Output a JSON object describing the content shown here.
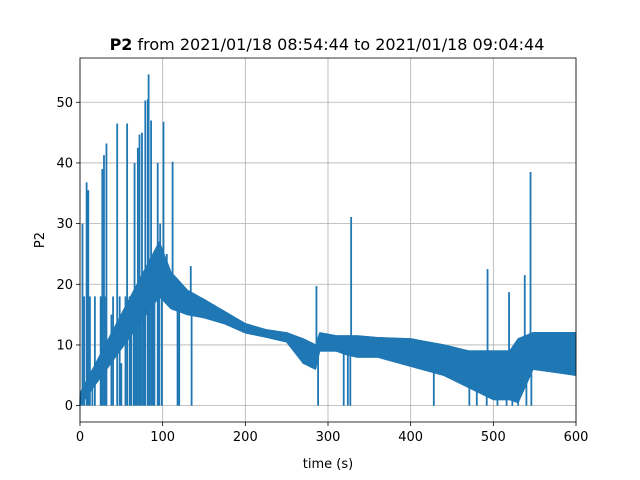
{
  "chart_data": {
    "type": "line",
    "title_bold": "P2",
    "title_rest": " from 2021/01/18 08:54:44 to 2021/01/18 09:04:44",
    "xlabel": "time (s)",
    "ylabel": "P2",
    "xlim": [
      0,
      600
    ],
    "ylim": [
      -2.7,
      57.3
    ],
    "xticks": [
      0,
      100,
      200,
      300,
      400,
      500,
      600
    ],
    "yticks": [
      0,
      10,
      20,
      30,
      40,
      50
    ],
    "grid": true,
    "color": "#1f77b4",
    "spikes": [
      {
        "x": 3,
        "y": 30
      },
      {
        "x": 8,
        "y": 36.8
      },
      {
        "x": 10,
        "y": 35.5
      },
      {
        "x": 15,
        "y": 3.5
      },
      {
        "x": 27,
        "y": 39
      },
      {
        "x": 29,
        "y": 41.3
      },
      {
        "x": 32,
        "y": 43.2
      },
      {
        "x": 38,
        "y": 15
      },
      {
        "x": 45,
        "y": 46.5
      },
      {
        "x": 50,
        "y": 7
      },
      {
        "x": 57,
        "y": 46.5
      },
      {
        "x": 62,
        "y": 16
      },
      {
        "x": 66,
        "y": 40
      },
      {
        "x": 70,
        "y": 42.5
      },
      {
        "x": 72,
        "y": 44.7
      },
      {
        "x": 75,
        "y": 45
      },
      {
        "x": 79,
        "y": 50.3
      },
      {
        "x": 82,
        "y": 50.5
      },
      {
        "x": 83,
        "y": 54.6
      },
      {
        "x": 86,
        "y": 47
      },
      {
        "x": 90,
        "y": 25
      },
      {
        "x": 94,
        "y": 40
      },
      {
        "x": 97,
        "y": 30
      },
      {
        "x": 101,
        "y": 46.8
      },
      {
        "x": 105,
        "y": 25
      },
      {
        "x": 112,
        "y": 40.2
      },
      {
        "x": 117,
        "y": 21
      },
      {
        "x": 126,
        "y": 18
      },
      {
        "x": 134,
        "y": 23
      },
      {
        "x": 286,
        "y": 19.7
      },
      {
        "x": 328,
        "y": 31.1
      },
      {
        "x": 493,
        "y": 22.5
      },
      {
        "x": 510,
        "y": 7
      },
      {
        "x": 519,
        "y": 18.7
      },
      {
        "x": 538,
        "y": 21.5
      },
      {
        "x": 545,
        "y": 38.5
      }
    ],
    "dips": [
      {
        "x": 5,
        "y": 0
      },
      {
        "x": 12,
        "y": 0
      },
      {
        "x": 18,
        "y": 0
      },
      {
        "x": 25,
        "y": 0
      },
      {
        "x": 30,
        "y": 0
      },
      {
        "x": 40,
        "y": 0
      },
      {
        "x": 48,
        "y": 0
      },
      {
        "x": 55,
        "y": 0
      },
      {
        "x": 60,
        "y": 0
      },
      {
        "x": 65,
        "y": 0
      },
      {
        "x": 68,
        "y": 0
      },
      {
        "x": 73,
        "y": 0
      },
      {
        "x": 77,
        "y": 0
      },
      {
        "x": 84,
        "y": 0
      },
      {
        "x": 88,
        "y": 0
      },
      {
        "x": 96,
        "y": 0
      },
      {
        "x": 99,
        "y": 0
      },
      {
        "x": 118,
        "y": 0
      },
      {
        "x": 120,
        "y": 0
      },
      {
        "x": 135,
        "y": 0
      },
      {
        "x": 288,
        "y": 0
      },
      {
        "x": 319,
        "y": 0
      },
      {
        "x": 324,
        "y": 0
      },
      {
        "x": 327,
        "y": 0
      },
      {
        "x": 428,
        "y": 0
      },
      {
        "x": 471,
        "y": 0
      },
      {
        "x": 480,
        "y": 0
      },
      {
        "x": 492,
        "y": 0
      },
      {
        "x": 505,
        "y": 0
      },
      {
        "x": 516,
        "y": 0
      },
      {
        "x": 523,
        "y": 0
      },
      {
        "x": 530,
        "y": 0
      },
      {
        "x": 540,
        "y": 0
      },
      {
        "x": 546,
        "y": 0
      }
    ],
    "band": [
      {
        "x": 0,
        "lo": 0,
        "hi": 2
      },
      {
        "x": 96,
        "lo": 18,
        "hi": 27
      },
      {
        "x": 110,
        "lo": 16,
        "hi": 22
      },
      {
        "x": 130,
        "lo": 15,
        "hi": 19
      },
      {
        "x": 150,
        "lo": 14.5,
        "hi": 17.5
      },
      {
        "x": 175,
        "lo": 13.5,
        "hi": 15.5
      },
      {
        "x": 200,
        "lo": 12,
        "hi": 13.5
      },
      {
        "x": 225,
        "lo": 11.3,
        "hi": 12.5
      },
      {
        "x": 250,
        "lo": 10.5,
        "hi": 12
      },
      {
        "x": 270,
        "lo": 7,
        "hi": 11
      },
      {
        "x": 285,
        "lo": 6,
        "hi": 10
      },
      {
        "x": 290,
        "lo": 9,
        "hi": 12
      },
      {
        "x": 310,
        "lo": 9,
        "hi": 11.5
      },
      {
        "x": 320,
        "lo": 8.5,
        "hi": 11.5
      },
      {
        "x": 335,
        "lo": 8,
        "hi": 11.5
      },
      {
        "x": 360,
        "lo": 8,
        "hi": 11.2
      },
      {
        "x": 400,
        "lo": 6.5,
        "hi": 11
      },
      {
        "x": 440,
        "lo": 5,
        "hi": 10
      },
      {
        "x": 470,
        "lo": 3,
        "hi": 9
      },
      {
        "x": 500,
        "lo": 1,
        "hi": 9
      },
      {
        "x": 520,
        "lo": 1,
        "hi": 9
      },
      {
        "x": 530,
        "lo": 0.5,
        "hi": 11
      },
      {
        "x": 548,
        "lo": 6,
        "hi": 12
      },
      {
        "x": 575,
        "lo": 5.5,
        "hi": 12
      },
      {
        "x": 600,
        "lo": 5,
        "hi": 12
      }
    ]
  }
}
